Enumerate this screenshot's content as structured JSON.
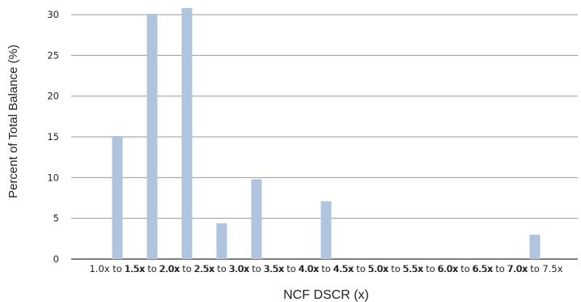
{
  "chart_data": {
    "type": "bar",
    "title": "",
    "xlabel": "NCF DSCR (x)",
    "ylabel": "Percent of Total Balance (%)",
    "ylim": [
      0,
      31
    ],
    "yticks": [
      0,
      5,
      10,
      15,
      20,
      25,
      30
    ],
    "grid": true,
    "categories": [
      "1.0x to 1.5x",
      "1.5x to 2.0x",
      "2.0x to 2.5x",
      "2.5x to 3.0x",
      "3.0x to 3.5x",
      "3.5x to 4.0x",
      "4.0x to 4.5x",
      "4.5x to 5.0x",
      "5.0x to 5.5x",
      "5.5x to 6.0x",
      "6.0x to 6.5x",
      "6.5x to 7.0x",
      "7.0x to 7.5x"
    ],
    "values": [
      15.1,
      30.1,
      30.8,
      4.4,
      9.8,
      0,
      7.1,
      0,
      0,
      0,
      0,
      0,
      3.0
    ],
    "colors": {
      "bar": "#b0c4de",
      "grid": "#9a9a9a",
      "axis": "#333333"
    }
  }
}
